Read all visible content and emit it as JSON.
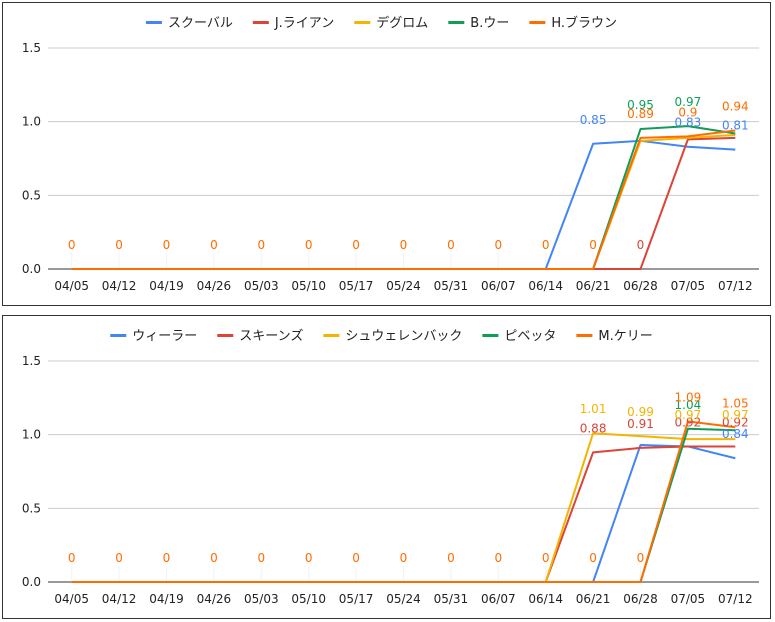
{
  "chart_data": [
    {
      "type": "line",
      "categories": [
        "04/05",
        "04/12",
        "04/19",
        "04/26",
        "05/03",
        "05/10",
        "05/17",
        "05/24",
        "05/31",
        "06/07",
        "06/14",
        "06/21",
        "06/28",
        "07/05",
        "07/12"
      ],
      "ylim": [
        0,
        1.5
      ],
      "yticks": [
        "0.0",
        "0.5",
        "1.0",
        "1.5"
      ],
      "grid": true,
      "legend": "top",
      "series": [
        {
          "name": "スクーバル",
          "color": "#4285f4",
          "values": [
            0,
            0,
            0,
            0,
            0,
            0,
            0,
            0,
            0,
            0,
            0,
            0.85,
            0.87,
            0.83,
            0.81
          ],
          "labels": [
            null,
            null,
            null,
            null,
            null,
            null,
            null,
            null,
            null,
            null,
            null,
            "0.85",
            null,
            "0.83",
            "0.81"
          ]
        },
        {
          "name": "J.ライアン",
          "color": "#db4437",
          "values": [
            0,
            0,
            0,
            0,
            0,
            0,
            0,
            0,
            0,
            0,
            0,
            0,
            0,
            0.88,
            0.89
          ],
          "labels": [
            null,
            null,
            null,
            null,
            null,
            null,
            null,
            null,
            null,
            null,
            null,
            null,
            null,
            null,
            null
          ]
        },
        {
          "name": "デグロム",
          "color": "#f4b400",
          "values": [
            0,
            0,
            0,
            0,
            0,
            0,
            0,
            0,
            0,
            0,
            0,
            0,
            0.87,
            0.89,
            0.91
          ],
          "labels": [
            null,
            null,
            null,
            null,
            null,
            null,
            null,
            null,
            null,
            null,
            null,
            null,
            null,
            null,
            null
          ]
        },
        {
          "name": "B.ウー",
          "color": "#0f9d58",
          "values": [
            0,
            0,
            0,
            0,
            0,
            0,
            0,
            0,
            0,
            0,
            0,
            0,
            0.95,
            0.97,
            0.92
          ],
          "labels": [
            null,
            null,
            null,
            null,
            null,
            null,
            null,
            null,
            null,
            null,
            null,
            null,
            "0.95",
            "0.97",
            null
          ]
        },
        {
          "name": "H.ブラウン",
          "color": "#ff6d00",
          "values": [
            0,
            0,
            0,
            0,
            0,
            0,
            0,
            0,
            0,
            0,
            0,
            0,
            0.89,
            0.9,
            0.94
          ],
          "labels": [
            "0",
            "0",
            "0",
            "0",
            "0",
            "0",
            "0",
            "0",
            "0",
            "0",
            "0",
            "0",
            "0.89",
            "0.9",
            "0.94"
          ]
        }
      ],
      "extra_labels": [
        {
          "i": 12,
          "y": 0,
          "text": "0",
          "color": "#db4437"
        }
      ]
    },
    {
      "type": "line",
      "categories": [
        "04/05",
        "04/12",
        "04/19",
        "04/26",
        "05/03",
        "05/10",
        "05/17",
        "05/24",
        "05/31",
        "06/07",
        "06/14",
        "06/21",
        "06/28",
        "07/05",
        "07/12"
      ],
      "ylim": [
        0,
        1.5
      ],
      "yticks": [
        "0.0",
        "0.5",
        "1.0",
        "1.5"
      ],
      "grid": true,
      "legend": "top",
      "series": [
        {
          "name": "ウィーラー",
          "color": "#4285f4",
          "values": [
            0,
            0,
            0,
            0,
            0,
            0,
            0,
            0,
            0,
            0,
            0,
            0,
            0.93,
            0.92,
            0.84
          ],
          "labels": [
            null,
            null,
            null,
            null,
            null,
            null,
            null,
            null,
            null,
            null,
            null,
            null,
            null,
            null,
            "0.84"
          ]
        },
        {
          "name": "スキーンズ",
          "color": "#db4437",
          "values": [
            0,
            0,
            0,
            0,
            0,
            0,
            0,
            0,
            0,
            0,
            0,
            0.88,
            0.91,
            0.92,
            0.92
          ],
          "labels": [
            null,
            null,
            null,
            null,
            null,
            null,
            null,
            null,
            null,
            null,
            null,
            "0.88",
            "0.91",
            "0.92",
            "0.92"
          ]
        },
        {
          "name": "シュウェレンバック",
          "color": "#f4b400",
          "values": [
            0,
            0,
            0,
            0,
            0,
            0,
            0,
            0,
            0,
            0,
            0,
            1.01,
            0.99,
            0.97,
            0.97
          ],
          "labels": [
            null,
            null,
            null,
            null,
            null,
            null,
            null,
            null,
            null,
            null,
            null,
            "1.01",
            "0.99",
            "0.97",
            "0.97"
          ]
        },
        {
          "name": "ピベッタ",
          "color": "#0f9d58",
          "values": [
            0,
            0,
            0,
            0,
            0,
            0,
            0,
            0,
            0,
            0,
            0,
            0,
            0,
            1.04,
            1.03
          ],
          "labels": [
            null,
            null,
            null,
            null,
            null,
            null,
            null,
            null,
            null,
            null,
            null,
            null,
            null,
            "1.04",
            null
          ]
        },
        {
          "name": "M.ケリー",
          "color": "#ff6d00",
          "values": [
            0,
            0,
            0,
            0,
            0,
            0,
            0,
            0,
            0,
            0,
            0,
            0,
            0,
            1.09,
            1.05
          ],
          "labels": [
            "0",
            "0",
            "0",
            "0",
            "0",
            "0",
            "0",
            "0",
            "0",
            "0",
            "0",
            "0",
            "0",
            "1.09",
            "1.05"
          ]
        }
      ],
      "extra_labels": []
    }
  ]
}
